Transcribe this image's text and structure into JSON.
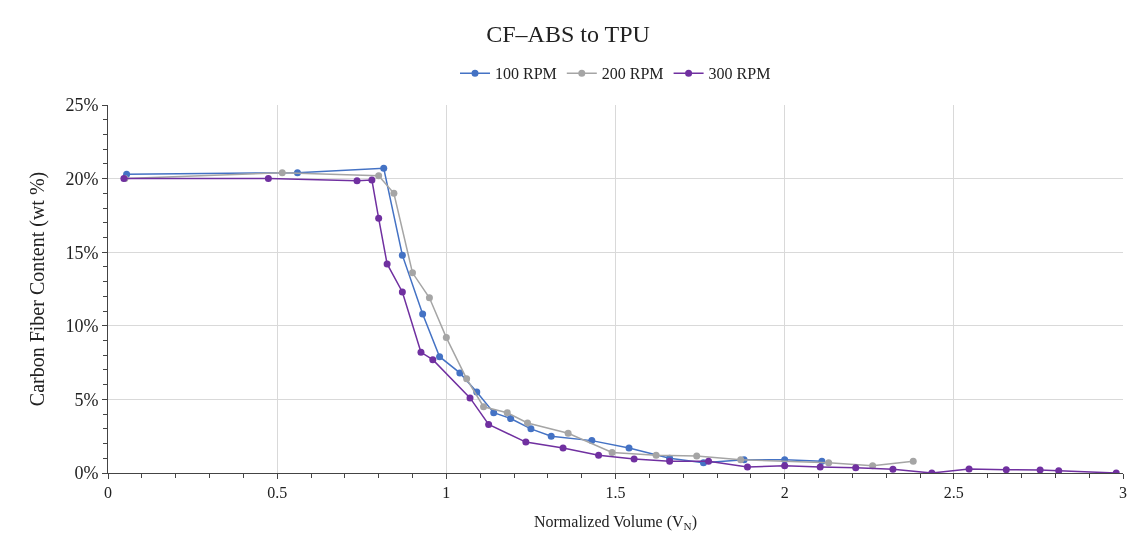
{
  "chart_data": {
    "type": "line",
    "title": "CF–ABS to TPU",
    "xlabel": "Normalized Volume (V$_{N}$)",
    "ylabel": "Carbon Fiber Content (wt %)",
    "xlim": [
      0,
      3
    ],
    "xticks": [
      0,
      0.5,
      1,
      1.5,
      2,
      2.5,
      3
    ],
    "ylim": [
      0,
      25
    ],
    "yticks": [
      {
        "value": 0,
        "label": "0%"
      },
      {
        "value": 5,
        "label": "5%"
      },
      {
        "value": 10,
        "label": "10%"
      },
      {
        "value": 15,
        "label": "15%"
      },
      {
        "value": 20,
        "label": "20%"
      },
      {
        "value": 25,
        "label": "25%"
      }
    ],
    "grid": true,
    "legend": "top",
    "marker": "circle",
    "line_style": "solid",
    "series": [
      {
        "name": "100 RPM",
        "color": "#4472c4",
        "x": [
          0.055,
          0.56,
          0.815,
          0.87,
          0.93,
          0.98,
          1.04,
          1.09,
          1.14,
          1.19,
          1.25,
          1.31,
          1.43,
          1.54,
          1.66,
          1.76,
          1.88,
          2.0,
          2.11
        ],
        "values": [
          20.3,
          20.4,
          20.7,
          14.8,
          10.8,
          7.9,
          6.8,
          5.5,
          4.1,
          3.7,
          3.0,
          2.5,
          2.2,
          1.7,
          1.0,
          0.7,
          0.9,
          0.9,
          0.8
        ]
      },
      {
        "name": "200 RPM",
        "color": "#a5a5a5",
        "x": [
          0.05,
          0.515,
          0.8,
          0.845,
          0.9,
          0.95,
          1.0,
          1.06,
          1.11,
          1.18,
          1.24,
          1.36,
          1.49,
          1.62,
          1.74,
          1.87,
          2.13,
          2.26,
          2.38
        ],
        "values": [
          20.0,
          20.4,
          20.2,
          19.0,
          13.6,
          11.9,
          9.2,
          6.4,
          4.5,
          4.1,
          3.4,
          2.7,
          1.4,
          1.2,
          1.15,
          0.9,
          0.7,
          0.5,
          0.8
        ]
      },
      {
        "name": "300 RPM",
        "color": "#7030a0",
        "x": [
          0.047,
          0.474,
          0.736,
          0.78,
          0.8,
          0.825,
          0.87,
          0.925,
          0.96,
          1.07,
          1.125,
          1.235,
          1.345,
          1.45,
          1.555,
          1.66,
          1.775,
          1.89,
          2.0,
          2.105,
          2.21,
          2.32,
          2.435,
          2.545,
          2.655,
          2.755,
          2.81,
          2.98
        ],
        "values": [
          20.0,
          20.0,
          19.85,
          19.9,
          17.3,
          14.2,
          12.3,
          8.2,
          7.7,
          5.1,
          3.3,
          2.1,
          1.7,
          1.2,
          0.95,
          0.8,
          0.8,
          0.4,
          0.5,
          0.4,
          0.35,
          0.25,
          0,
          0.27,
          0.22,
          0.2,
          0.15,
          0
        ]
      }
    ]
  }
}
